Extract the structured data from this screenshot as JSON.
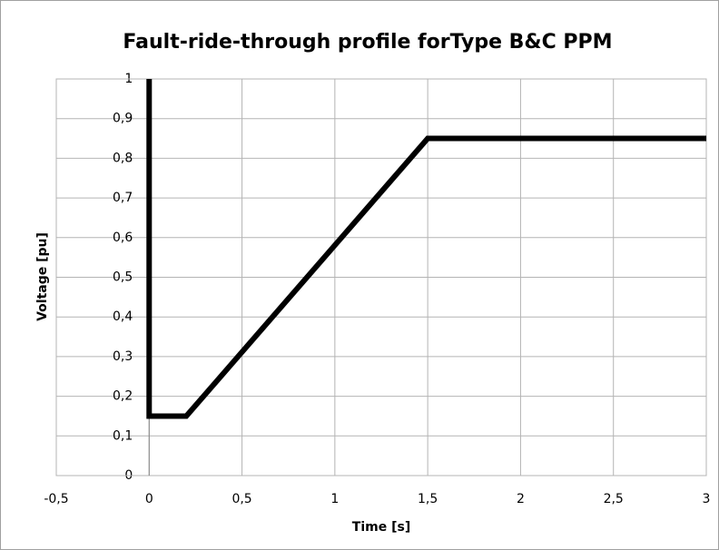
{
  "chart_data": {
    "type": "line",
    "title": "Fault-ride-through profile forType B&C PPM",
    "xlabel": "Time [s]",
    "ylabel": "Voltage [pu]",
    "x": [
      0,
      0,
      0.2,
      1.5,
      3
    ],
    "values": [
      1,
      0.15,
      0.15,
      0.85,
      0.85
    ],
    "color": "#000000",
    "xlim": [
      -0.5,
      3
    ],
    "xticks": [
      {
        "value": -0.5,
        "label": "-0,5"
      },
      0,
      {
        "value": 0.5,
        "label": "0,5"
      },
      1,
      {
        "value": 1.5,
        "label": "1,5"
      },
      2,
      {
        "value": 2.5,
        "label": "2,5"
      },
      3
    ],
    "ylim": [
      0,
      1
    ],
    "yticks": [
      0,
      {
        "value": 0.1,
        "label": "0,1"
      },
      {
        "value": 0.2,
        "label": "0,2"
      },
      {
        "value": 0.3,
        "label": "0,3"
      },
      {
        "value": 0.4,
        "label": "0,4"
      },
      {
        "value": 0.5,
        "label": "0,5"
      },
      {
        "value": 0.6,
        "label": "0,6"
      },
      {
        "value": 0.7,
        "label": "0,7"
      },
      {
        "value": 0.8,
        "label": "0,8"
      },
      {
        "value": 0.9,
        "label": "0,9"
      },
      1
    ],
    "grid": true
  }
}
